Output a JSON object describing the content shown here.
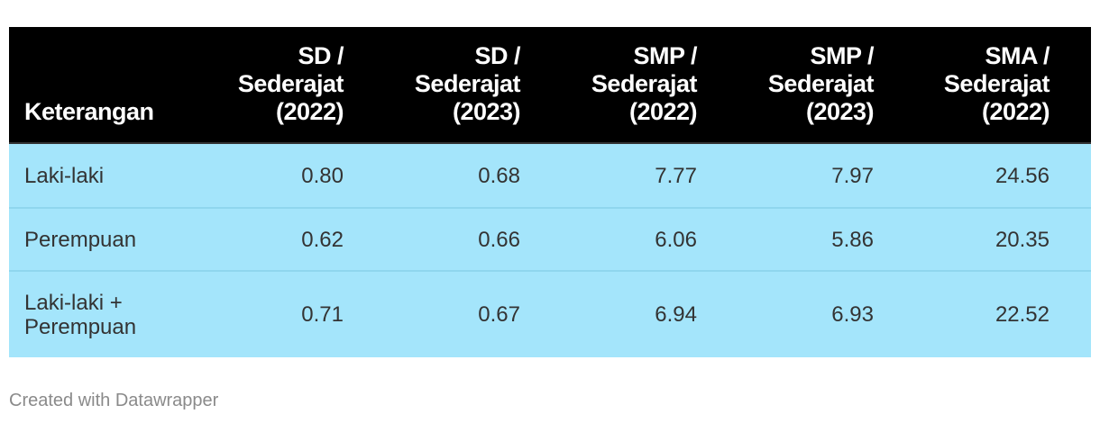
{
  "table": {
    "header": [
      [
        "Keterangan"
      ],
      [
        "SD /",
        "Sederajat",
        "(2022)"
      ],
      [
        "SD /",
        "Sederajat",
        "(2023)"
      ],
      [
        "SMP /",
        "Sederajat",
        "(2022)"
      ],
      [
        "SMP /",
        "Sederajat",
        "(2023)"
      ],
      [
        "SMA /",
        "Sederajat",
        "(2022)"
      ]
    ],
    "rows": [
      [
        [
          "Laki-laki"
        ],
        "0.80",
        "0.68",
        "7.77",
        "7.97",
        "24.56"
      ],
      [
        [
          "Perempuan"
        ],
        "0.62",
        "0.66",
        "6.06",
        "5.86",
        "20.35"
      ],
      [
        [
          "Laki-laki +",
          "Perempuan"
        ],
        "0.71",
        "0.67",
        "6.94",
        "6.93",
        "22.52"
      ]
    ]
  },
  "footer": "Created with Datawrapper"
}
